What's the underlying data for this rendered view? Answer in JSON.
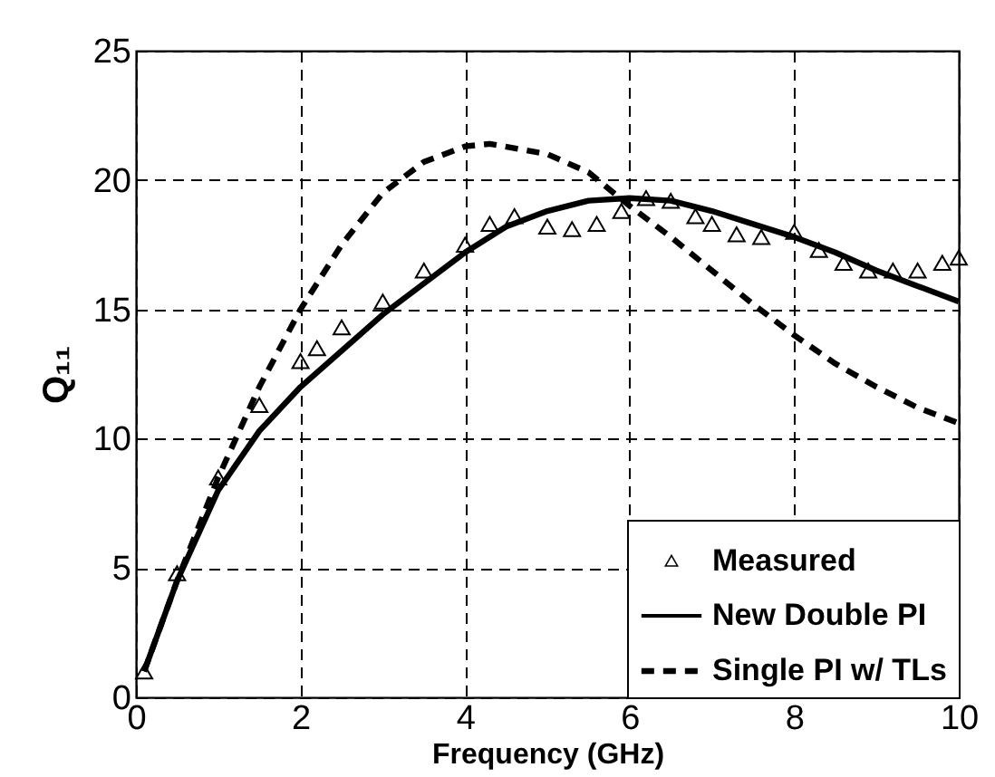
{
  "chart_data": {
    "type": "line",
    "xlabel": "Frequency  (GHz)",
    "ylabel": "Q₁₁",
    "xlim": [
      0,
      10
    ],
    "xticks": [
      0,
      2,
      4,
      6,
      8,
      10
    ],
    "ylim": [
      0,
      25
    ],
    "yticks": [
      0,
      5,
      10,
      15,
      20,
      25
    ],
    "grid": true,
    "legend": "bottom right",
    "series": [
      {
        "name": "Measured",
        "type": "scatter",
        "marker": "triangle",
        "color": "#000000",
        "x": [
          0.1,
          0.5,
          1,
          1.5,
          2,
          2.2,
          2.5,
          3,
          3.5,
          4,
          4.3,
          4.6,
          5,
          5.3,
          5.6,
          5.9,
          6.2,
          6.5,
          6.8,
          7,
          7.3,
          7.6,
          8,
          8.3,
          8.6,
          8.9,
          9.2,
          9.5,
          9.8,
          10
        ],
        "values": [
          1,
          4.8,
          8.5,
          11.3,
          13,
          13.5,
          14.3,
          15.3,
          16.5,
          17.5,
          18.3,
          18.6,
          18.2,
          18.1,
          18.3,
          18.8,
          19.3,
          19.2,
          18.6,
          18.3,
          17.9,
          17.8,
          18,
          17.3,
          16.8,
          16.5,
          16.5,
          16.5,
          16.8,
          17
        ]
      },
      {
        "name": "New Double PI",
        "type": "line",
        "line_style": "solid",
        "color": "#000000",
        "x": [
          0.1,
          0.5,
          1,
          1.5,
          2,
          2.5,
          3,
          3.5,
          4,
          4.5,
          5,
          5.5,
          6,
          6.5,
          7,
          7.5,
          8,
          8.5,
          9,
          9.5,
          10
        ],
        "values": [
          1,
          4.5,
          8,
          10.3,
          12,
          13.4,
          14.8,
          16,
          17.2,
          18.2,
          18.8,
          19.2,
          19.3,
          19.2,
          18.8,
          18.3,
          17.8,
          17.2,
          16.5,
          15.9,
          15.3
        ]
      },
      {
        "name": "Single PI w/ TLs",
        "type": "line",
        "line_style": "dashed",
        "color": "#000000",
        "x": [
          0.1,
          0.5,
          1,
          1.5,
          2,
          2.5,
          3,
          3.5,
          4,
          4.3,
          5,
          5.5,
          6,
          6.5,
          7,
          7.5,
          8,
          8.5,
          9,
          9.5,
          10
        ],
        "values": [
          1,
          4.5,
          8.5,
          12,
          15,
          17.5,
          19.5,
          20.7,
          21.3,
          21.4,
          21,
          20.3,
          19,
          17.8,
          16.5,
          15.2,
          14,
          12.9,
          12,
          11.2,
          10.6
        ]
      }
    ]
  }
}
